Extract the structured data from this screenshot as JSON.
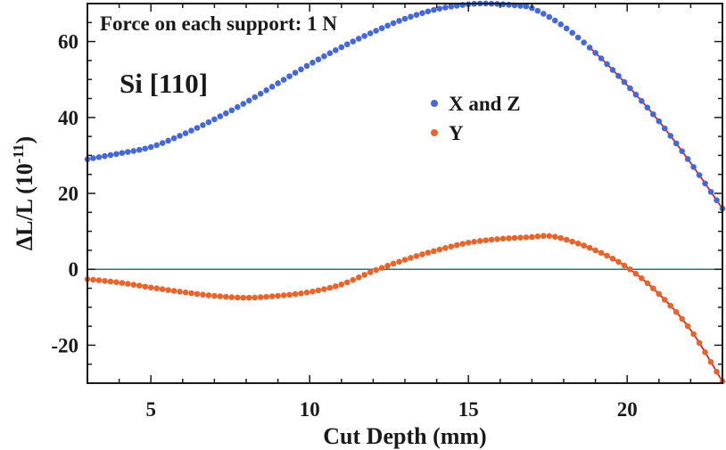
{
  "chart_data": {
    "type": "scatter",
    "title": "",
    "annotations": {
      "force_text": "Force on each support: 1 N",
      "material_text": "Si [110]"
    },
    "xlabel": "Cut Depth (mm)",
    "ylabel": {
      "main": "ΔL/L (10",
      "exponent": "-11",
      "close": ")"
    },
    "xlim": [
      3,
      23
    ],
    "ylim": [
      -30,
      70
    ],
    "xticks": [
      5,
      10,
      15,
      20
    ],
    "yticks": [
      -20,
      0,
      20,
      40,
      60
    ],
    "xtick_labels": [
      "5",
      "10",
      "15",
      "20"
    ],
    "ytick_labels": [
      "-20",
      "0",
      "20",
      "40",
      "60"
    ],
    "grid": false,
    "legend_position": "upper-center-right",
    "zero_line": true,
    "series": [
      {
        "name": "X and Z",
        "color": "#4468d8",
        "fit_color": "#e02020",
        "fit_from_x": 18.8,
        "points": [
          [
            3.0,
            29.0
          ],
          [
            4.0,
            30.5
          ],
          [
            5.0,
            32.2
          ],
          [
            6.0,
            35.5
          ],
          [
            7.0,
            39.5
          ],
          [
            8.0,
            44.0
          ],
          [
            9.0,
            49.0
          ],
          [
            10.0,
            54.0
          ],
          [
            11.0,
            58.5
          ],
          [
            12.0,
            62.5
          ],
          [
            13.0,
            66.0
          ],
          [
            14.0,
            68.5
          ],
          [
            15.0,
            69.8
          ],
          [
            15.6,
            70.0
          ],
          [
            16.5,
            69.5
          ],
          [
            17.0,
            68.8
          ],
          [
            18.0,
            64.0
          ],
          [
            19.0,
            57.0
          ],
          [
            20.0,
            48.5
          ],
          [
            21.0,
            39.0
          ],
          [
            22.0,
            28.0
          ],
          [
            23.0,
            16.0
          ]
        ]
      },
      {
        "name": "Y",
        "color": "#e8642a",
        "fit_color": "#e02020",
        "fit_from_x": 17.5,
        "points": [
          [
            3.0,
            -2.6
          ],
          [
            4.0,
            -3.5
          ],
          [
            5.0,
            -4.8
          ],
          [
            6.0,
            -6.0
          ],
          [
            7.0,
            -7.0
          ],
          [
            8.0,
            -7.5
          ],
          [
            9.0,
            -7.0
          ],
          [
            10.0,
            -6.0
          ],
          [
            11.0,
            -4.0
          ],
          [
            12.0,
            -0.5
          ],
          [
            13.0,
            2.5
          ],
          [
            14.0,
            5.0
          ],
          [
            15.0,
            7.0
          ],
          [
            16.0,
            8.0
          ],
          [
            17.0,
            8.5
          ],
          [
            17.5,
            8.8
          ],
          [
            18.0,
            8.0
          ],
          [
            19.0,
            5.0
          ],
          [
            20.0,
            0.5
          ],
          [
            21.0,
            -6.5
          ],
          [
            22.0,
            -16.0
          ],
          [
            23.0,
            -29.5
          ]
        ]
      }
    ]
  }
}
